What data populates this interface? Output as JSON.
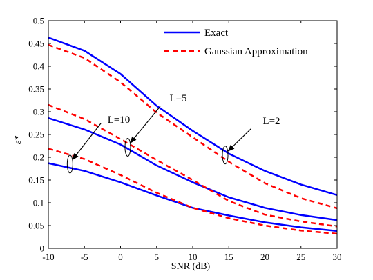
{
  "chart_data": {
    "type": "line",
    "xlabel": "SNR (dB)",
    "ylabel": "ε*",
    "xlim": [
      -10,
      30
    ],
    "ylim": [
      0,
      0.5
    ],
    "xticks": [
      -10,
      -5,
      0,
      5,
      10,
      15,
      20,
      25,
      30
    ],
    "yticks": [
      0,
      0.05,
      0.1,
      0.15,
      0.2,
      0.25,
      0.3,
      0.35,
      0.4,
      0.45,
      0.5
    ],
    "grid": false,
    "legend": {
      "placement": "top-right",
      "entries": [
        {
          "label": "Exact",
          "style": "solid",
          "color": "#0000ff"
        },
        {
          "label": "Gaussian Approximation",
          "style": "dashed",
          "color": "#ff0000"
        }
      ]
    },
    "x": [
      -10,
      -5,
      0,
      5,
      10,
      15,
      20,
      25,
      30
    ],
    "series": [
      {
        "group": "L=2",
        "kind": "Exact",
        "color": "#0000ff",
        "dash": false,
        "values": [
          0.463,
          0.434,
          0.383,
          0.313,
          0.258,
          0.208,
          0.17,
          0.14,
          0.117
        ]
      },
      {
        "group": "L=2",
        "kind": "Gaussian Approximation",
        "color": "#ff0000",
        "dash": true,
        "values": [
          0.447,
          0.418,
          0.365,
          0.298,
          0.244,
          0.19,
          0.143,
          0.11,
          0.088
        ]
      },
      {
        "group": "L=5",
        "kind": "Exact",
        "color": "#0000ff",
        "dash": false,
        "values": [
          0.286,
          0.261,
          0.228,
          0.182,
          0.145,
          0.112,
          0.089,
          0.073,
          0.062
        ]
      },
      {
        "group": "L=5",
        "kind": "Gaussian Approximation",
        "color": "#ff0000",
        "dash": true,
        "values": [
          0.315,
          0.284,
          0.24,
          0.194,
          0.15,
          0.104,
          0.074,
          0.059,
          0.048
        ]
      },
      {
        "group": "L=10",
        "kind": "Exact",
        "color": "#0000ff",
        "dash": false,
        "values": [
          0.187,
          0.17,
          0.145,
          0.116,
          0.089,
          0.072,
          0.057,
          0.046,
          0.038
        ]
      },
      {
        "group": "L=10",
        "kind": "Gaussian Approximation",
        "color": "#ff0000",
        "dash": true,
        "values": [
          0.219,
          0.196,
          0.161,
          0.122,
          0.089,
          0.066,
          0.05,
          0.039,
          0.032
        ]
      }
    ],
    "annotations": [
      {
        "text": "L=2",
        "x": 14.5,
        "y": 0.205
      },
      {
        "text": "L=5",
        "x": 1.0,
        "y": 0.222
      },
      {
        "text": "L=10",
        "x": -7.0,
        "y": 0.185
      }
    ]
  }
}
